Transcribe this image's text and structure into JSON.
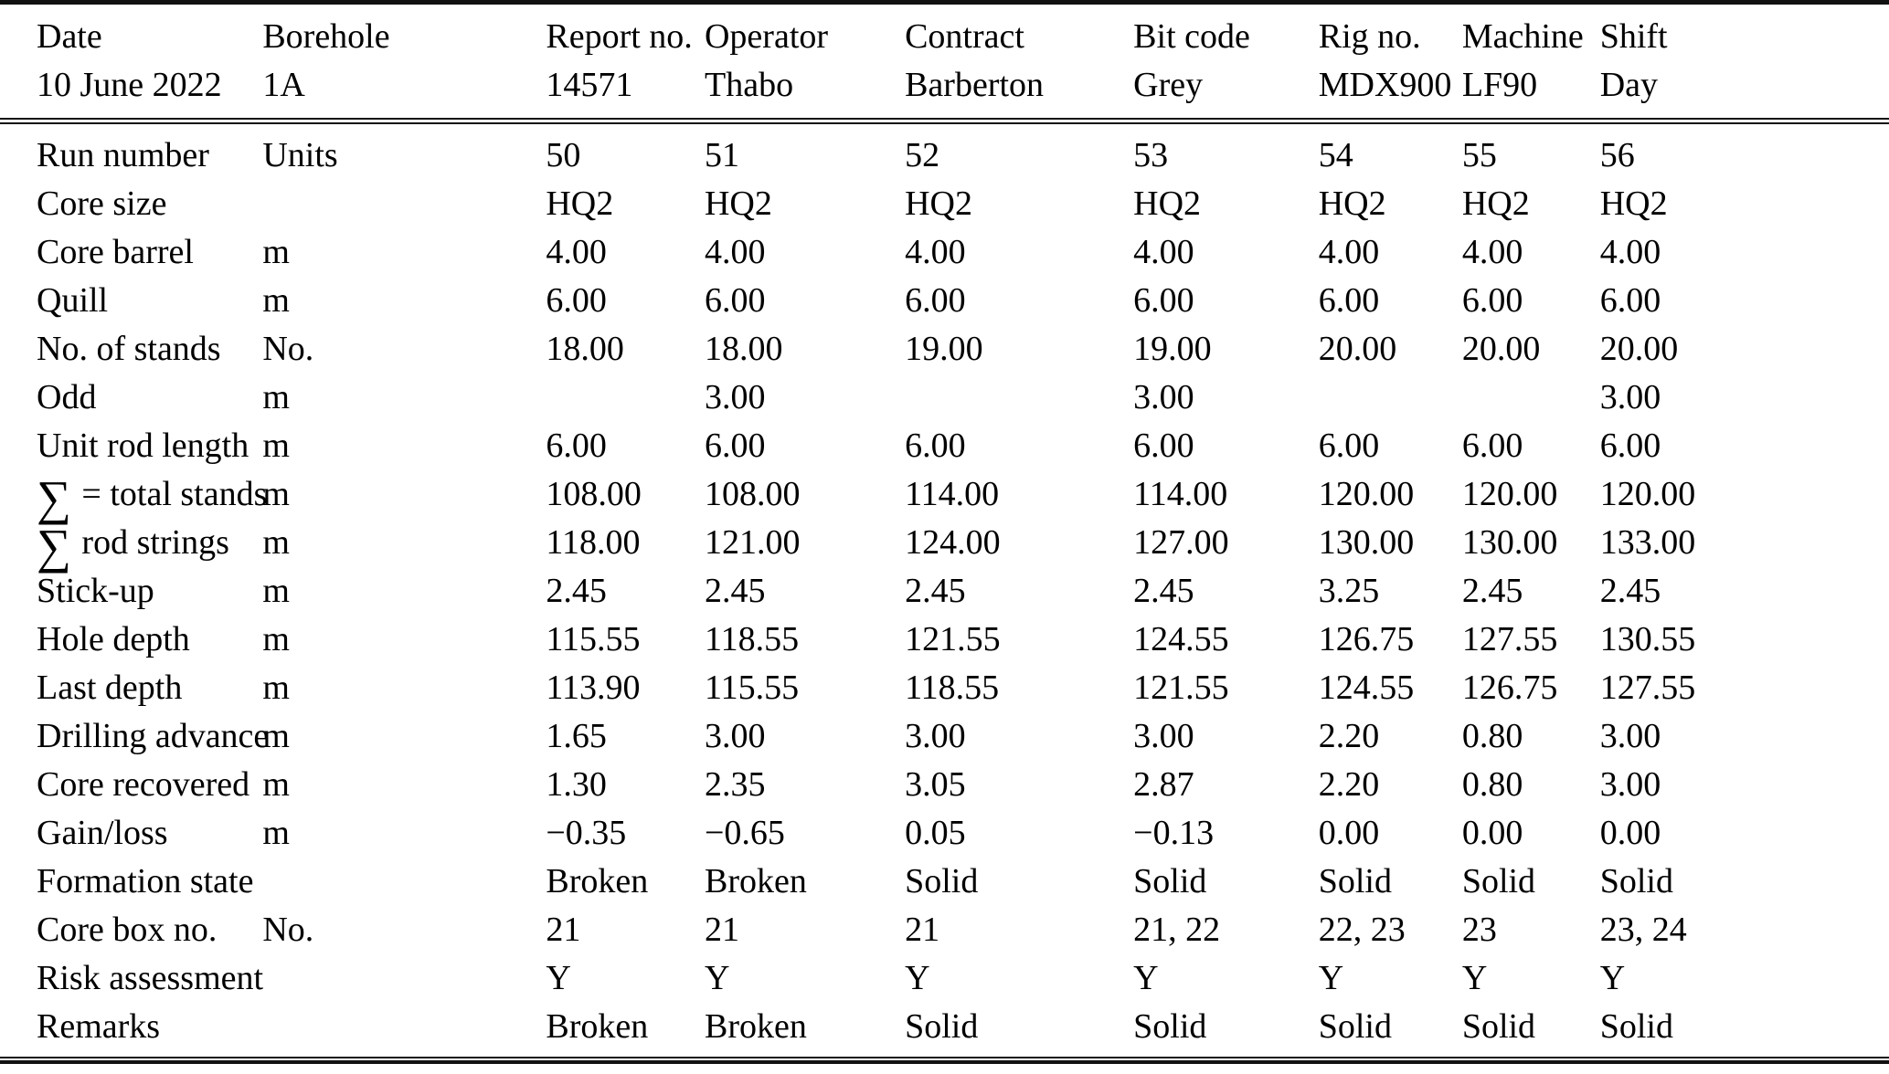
{
  "report_header": {
    "fields": [
      {
        "label": "Date",
        "value": "10 June 2022"
      },
      {
        "label": "Borehole",
        "value": "1A"
      },
      {
        "label": "Report no.",
        "value": "14571"
      },
      {
        "label": "Operator",
        "value": "Thabo"
      },
      {
        "label": "Contract",
        "value": "Barberton"
      },
      {
        "label": "Bit code",
        "value": "Grey"
      },
      {
        "label": "Rig no.",
        "value": "MDX900"
      },
      {
        "label": "Machine",
        "value": "LF90"
      },
      {
        "label": "Shift",
        "value": "Day"
      }
    ]
  },
  "table": {
    "unit_column_header": "Units",
    "run_numbers": [
      "50",
      "51",
      "52",
      "53",
      "54",
      "55",
      "56"
    ],
    "rows": [
      {
        "label": "Run number",
        "unit": "Units",
        "values": [
          "50",
          "51",
          "52",
          "53",
          "54",
          "55",
          "56"
        ]
      },
      {
        "label": "Core size",
        "unit": "",
        "values": [
          "HQ2",
          "HQ2",
          "HQ2",
          "HQ2",
          "HQ2",
          "HQ2",
          "HQ2"
        ]
      },
      {
        "label": "Core barrel",
        "unit": "m",
        "values": [
          "4.00",
          "4.00",
          "4.00",
          "4.00",
          "4.00",
          "4.00",
          "4.00"
        ]
      },
      {
        "label": "Quill",
        "unit": "m",
        "values": [
          "6.00",
          "6.00",
          "6.00",
          "6.00",
          "6.00",
          "6.00",
          "6.00"
        ]
      },
      {
        "label": "No. of stands",
        "unit": "No.",
        "values": [
          "18.00",
          "18.00",
          "19.00",
          "19.00",
          "20.00",
          "20.00",
          "20.00"
        ]
      },
      {
        "label": "Odd",
        "unit": "m",
        "values": [
          "",
          "3.00",
          "",
          "3.00",
          "",
          "",
          "3.00"
        ]
      },
      {
        "label": "Unit rod length",
        "unit": "m",
        "values": [
          "6.00",
          "6.00",
          "6.00",
          "6.00",
          "6.00",
          "6.00",
          "6.00"
        ]
      },
      {
        "label": "∑ = total stands",
        "unit": "m",
        "values": [
          "108.00",
          "108.00",
          "114.00",
          "114.00",
          "120.00",
          "120.00",
          "120.00"
        ]
      },
      {
        "label": "∑ rod strings",
        "unit": "m",
        "values": [
          "118.00",
          "121.00",
          "124.00",
          "127.00",
          "130.00",
          "130.00",
          "133.00"
        ]
      },
      {
        "label": "Stick-up",
        "unit": "m",
        "values": [
          "2.45",
          "2.45",
          "2.45",
          "2.45",
          "3.25",
          "2.45",
          "2.45"
        ]
      },
      {
        "label": "Hole depth",
        "unit": "m",
        "values": [
          "115.55",
          "118.55",
          "121.55",
          "124.55",
          "126.75",
          "127.55",
          "130.55"
        ]
      },
      {
        "label": "Last depth",
        "unit": "m",
        "values": [
          "113.90",
          "115.55",
          "118.55",
          "121.55",
          "124.55",
          "126.75",
          "127.55"
        ]
      },
      {
        "label": "Drilling advance",
        "unit": "m",
        "values": [
          "1.65",
          "3.00",
          "3.00",
          "3.00",
          "2.20",
          "0.80",
          "3.00"
        ]
      },
      {
        "label": "Core recovered",
        "unit": "m",
        "values": [
          "1.30",
          "2.35",
          "3.05",
          "2.87",
          "2.20",
          "0.80",
          "3.00"
        ]
      },
      {
        "label": "Gain/loss",
        "unit": "m",
        "values": [
          "−0.35",
          "−0.65",
          "0.05",
          "−0.13",
          "0.00",
          "0.00",
          "0.00"
        ]
      },
      {
        "label": "Formation state",
        "unit": "",
        "values": [
          "Broken",
          "Broken",
          "Solid",
          "Solid",
          "Solid",
          "Solid",
          "Solid"
        ]
      },
      {
        "label": "Core box no.",
        "unit": "No.",
        "values": [
          "21",
          "21",
          "21",
          "21, 22",
          "22, 23",
          "23",
          "23, 24"
        ]
      },
      {
        "label": "Risk assessment",
        "unit": "",
        "values": [
          "Y",
          "Y",
          "Y",
          "Y",
          "Y",
          "Y",
          "Y"
        ]
      },
      {
        "label": "Remarks",
        "unit": "",
        "values": [
          "Broken",
          "Broken",
          "Solid",
          "Solid",
          "Solid",
          "Solid",
          "Solid"
        ]
      }
    ]
  },
  "colors": {
    "text": "#000000",
    "background": "#ffffff",
    "rule": "#111111"
  }
}
